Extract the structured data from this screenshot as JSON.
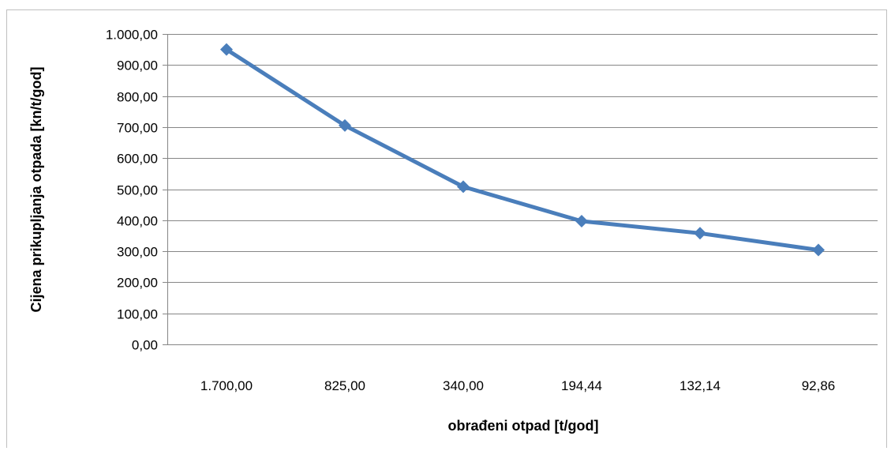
{
  "chart_data": {
    "type": "line",
    "title": "",
    "xlabel": "obrađeni otpad [t/god]",
    "ylabel": "Cijena prikupljanja otpada [kn/t/god]",
    "categories": [
      "1.700,00",
      "825,00",
      "340,00",
      "194,44",
      "132,14",
      "92,86"
    ],
    "series": [
      {
        "values": [
          950,
          705,
          508,
          397,
          358,
          304
        ]
      }
    ],
    "ylim": [
      0,
      1000
    ],
    "y_ticks": [
      "0,00",
      "100,00",
      "200,00",
      "300,00",
      "400,00",
      "500,00",
      "600,00",
      "700,00",
      "800,00",
      "900,00",
      "1.000,00"
    ],
    "grid": true,
    "legend": "none",
    "colors": {
      "series": "#4a7ebb",
      "grid": "#868686"
    }
  }
}
